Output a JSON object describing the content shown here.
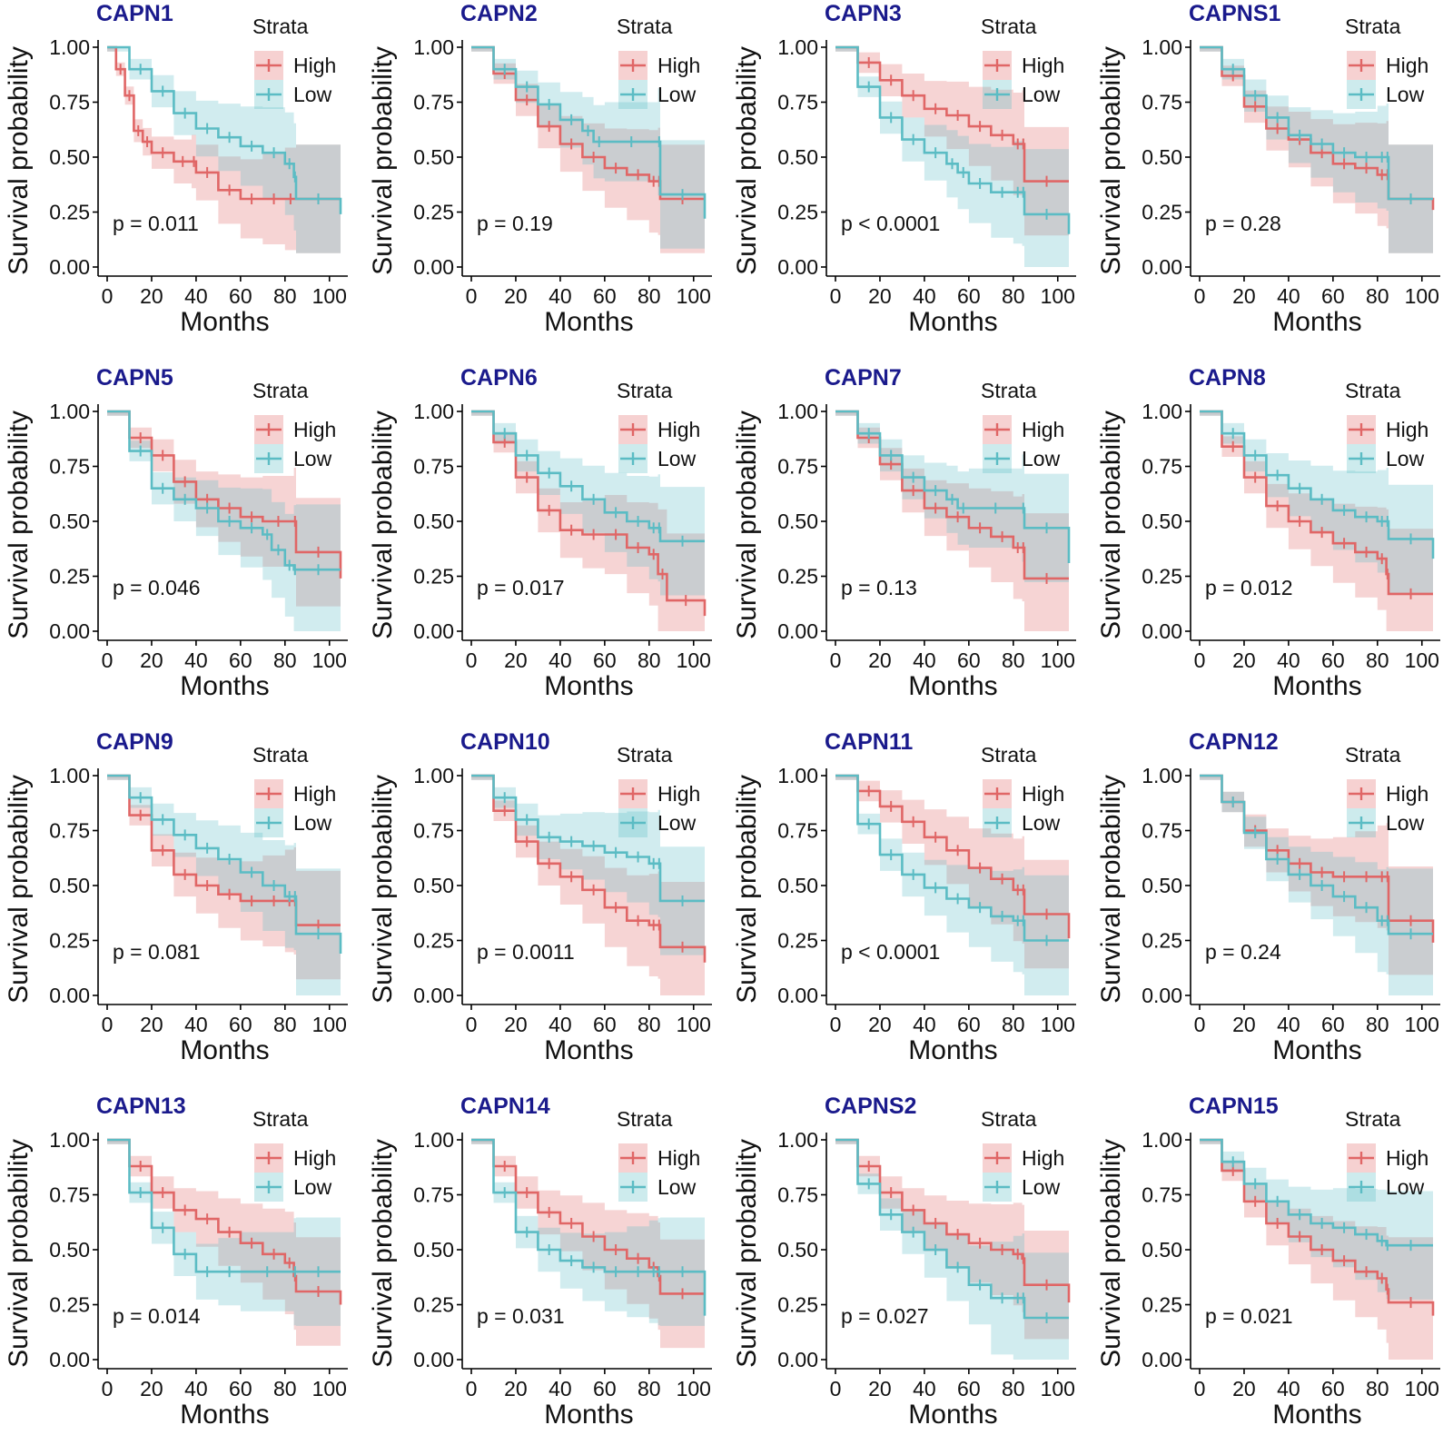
{
  "colors": {
    "high": "#e06666",
    "low": "#5bbcc4",
    "title": "#1a1a8c"
  },
  "legend": {
    "title": "Strata",
    "high_label": "High",
    "low_label": "Low"
  },
  "axes": {
    "xlabel": "Months",
    "ylabel": "Survival probability",
    "xticks": [
      "0",
      "20",
      "40",
      "60",
      "80",
      "100"
    ],
    "yticks": [
      "0.00",
      "0.25",
      "0.50",
      "0.75",
      "1.00"
    ],
    "xlim": [
      0,
      105
    ],
    "ylim": [
      0,
      1
    ]
  },
  "chart_data": [
    {
      "type": "line",
      "title": "CAPN1",
      "pvalue": "p = 0.011",
      "series": [
        {
          "name": "High",
          "x": [
            0,
            4,
            8,
            12,
            16,
            20,
            30,
            38,
            40,
            50,
            60,
            70,
            80,
            85,
            105
          ],
          "y": [
            1.0,
            0.9,
            0.78,
            0.62,
            0.57,
            0.52,
            0.48,
            0.48,
            0.43,
            0.35,
            0.31,
            0.31,
            0.31,
            0.31,
            0.31
          ]
        },
        {
          "name": "Low",
          "x": [
            0,
            10,
            20,
            30,
            40,
            50,
            60,
            70,
            80,
            84,
            85,
            105
          ],
          "y": [
            1.0,
            0.9,
            0.8,
            0.7,
            0.63,
            0.59,
            0.55,
            0.52,
            0.47,
            0.41,
            0.31,
            0.24
          ]
        }
      ]
    },
    {
      "type": "line",
      "title": "CAPN2",
      "pvalue": "p = 0.19",
      "series": [
        {
          "name": "High",
          "x": [
            0,
            10,
            20,
            30,
            40,
            50,
            60,
            70,
            80,
            84,
            85,
            105
          ],
          "y": [
            1.0,
            0.88,
            0.76,
            0.64,
            0.56,
            0.5,
            0.45,
            0.42,
            0.39,
            0.39,
            0.31,
            0.31
          ]
        },
        {
          "name": "Low",
          "x": [
            0,
            10,
            20,
            30,
            40,
            50,
            55,
            60,
            84,
            85,
            105
          ],
          "y": [
            1.0,
            0.9,
            0.82,
            0.74,
            0.67,
            0.62,
            0.57,
            0.57,
            0.57,
            0.33,
            0.22
          ]
        }
      ]
    },
    {
      "type": "line",
      "title": "CAPN3",
      "pvalue": "p < 0.0001",
      "series": [
        {
          "name": "High",
          "x": [
            0,
            10,
            20,
            30,
            40,
            50,
            60,
            70,
            80,
            84,
            85,
            105
          ],
          "y": [
            1.0,
            0.93,
            0.85,
            0.78,
            0.72,
            0.69,
            0.64,
            0.6,
            0.56,
            0.56,
            0.39,
            0.39
          ]
        },
        {
          "name": "Low",
          "x": [
            0,
            10,
            20,
            30,
            40,
            50,
            55,
            60,
            70,
            80,
            84,
            85,
            105
          ],
          "y": [
            1.0,
            0.82,
            0.68,
            0.58,
            0.52,
            0.47,
            0.43,
            0.38,
            0.34,
            0.34,
            0.34,
            0.24,
            0.15
          ]
        }
      ]
    },
    {
      "type": "line",
      "title": "CAPNS1",
      "pvalue": "p = 0.28",
      "series": [
        {
          "name": "High",
          "x": [
            0,
            10,
            20,
            30,
            40,
            50,
            60,
            70,
            80,
            84,
            85,
            105
          ],
          "y": [
            1.0,
            0.87,
            0.73,
            0.63,
            0.58,
            0.52,
            0.47,
            0.45,
            0.42,
            0.42,
            0.31,
            0.26
          ]
        },
        {
          "name": "Low",
          "x": [
            0,
            10,
            20,
            30,
            40,
            50,
            60,
            70,
            80,
            84,
            85,
            105
          ],
          "y": [
            1.0,
            0.9,
            0.78,
            0.68,
            0.6,
            0.56,
            0.52,
            0.5,
            0.5,
            0.5,
            0.31,
            0.31
          ]
        }
      ]
    },
    {
      "type": "line",
      "title": "CAPN5",
      "pvalue": "p = 0.046",
      "series": [
        {
          "name": "High",
          "x": [
            0,
            10,
            20,
            30,
            40,
            50,
            60,
            70,
            84,
            85,
            105
          ],
          "y": [
            1.0,
            0.88,
            0.8,
            0.68,
            0.6,
            0.56,
            0.52,
            0.5,
            0.5,
            0.36,
            0.24
          ]
        },
        {
          "name": "Low",
          "x": [
            0,
            10,
            20,
            30,
            40,
            50,
            60,
            70,
            74,
            80,
            84,
            85,
            105
          ],
          "y": [
            1.0,
            0.82,
            0.65,
            0.6,
            0.56,
            0.5,
            0.47,
            0.44,
            0.37,
            0.3,
            0.28,
            0.28,
            0.28
          ]
        }
      ]
    },
    {
      "type": "line",
      "title": "CAPN6",
      "pvalue": "p = 0.017",
      "series": [
        {
          "name": "High",
          "x": [
            0,
            10,
            20,
            30,
            40,
            50,
            60,
            70,
            80,
            84,
            88,
            105
          ],
          "y": [
            1.0,
            0.86,
            0.7,
            0.55,
            0.46,
            0.44,
            0.44,
            0.38,
            0.35,
            0.26,
            0.14,
            0.07
          ]
        },
        {
          "name": "Low",
          "x": [
            0,
            10,
            20,
            30,
            40,
            50,
            60,
            70,
            80,
            84,
            85,
            105
          ],
          "y": [
            1.0,
            0.9,
            0.8,
            0.72,
            0.66,
            0.6,
            0.54,
            0.5,
            0.47,
            0.47,
            0.41,
            0.41
          ]
        }
      ]
    },
    {
      "type": "line",
      "title": "CAPN7",
      "pvalue": "p = 0.13",
      "series": [
        {
          "name": "High",
          "x": [
            0,
            10,
            20,
            30,
            40,
            50,
            60,
            70,
            80,
            84,
            85,
            105
          ],
          "y": [
            1.0,
            0.88,
            0.76,
            0.64,
            0.56,
            0.52,
            0.47,
            0.43,
            0.38,
            0.38,
            0.24,
            0.24
          ]
        },
        {
          "name": "Low",
          "x": [
            0,
            10,
            20,
            30,
            40,
            50,
            55,
            60,
            84,
            85,
            105
          ],
          "y": [
            1.0,
            0.9,
            0.8,
            0.7,
            0.64,
            0.6,
            0.56,
            0.56,
            0.56,
            0.47,
            0.31
          ]
        }
      ]
    },
    {
      "type": "line",
      "title": "CAPN8",
      "pvalue": "p = 0.012",
      "series": [
        {
          "name": "High",
          "x": [
            0,
            10,
            20,
            30,
            40,
            50,
            60,
            70,
            80,
            84,
            85,
            105
          ],
          "y": [
            1.0,
            0.84,
            0.7,
            0.57,
            0.5,
            0.45,
            0.4,
            0.36,
            0.33,
            0.26,
            0.17,
            0.17
          ]
        },
        {
          "name": "Low",
          "x": [
            0,
            10,
            20,
            30,
            40,
            50,
            60,
            70,
            80,
            84,
            85,
            105
          ],
          "y": [
            1.0,
            0.9,
            0.8,
            0.71,
            0.65,
            0.6,
            0.55,
            0.52,
            0.5,
            0.5,
            0.42,
            0.33
          ]
        }
      ]
    },
    {
      "type": "line",
      "title": "CAPN9",
      "pvalue": "p = 0.081",
      "series": [
        {
          "name": "High",
          "x": [
            0,
            10,
            20,
            30,
            40,
            50,
            60,
            70,
            80,
            84,
            85,
            105
          ],
          "y": [
            1.0,
            0.82,
            0.66,
            0.55,
            0.5,
            0.46,
            0.43,
            0.43,
            0.43,
            0.43,
            0.32,
            0.32
          ]
        },
        {
          "name": "Low",
          "x": [
            0,
            10,
            20,
            30,
            40,
            50,
            60,
            70,
            80,
            84,
            85,
            105
          ],
          "y": [
            1.0,
            0.9,
            0.8,
            0.73,
            0.67,
            0.62,
            0.56,
            0.5,
            0.45,
            0.45,
            0.28,
            0.19
          ]
        }
      ]
    },
    {
      "type": "line",
      "title": "CAPN10",
      "pvalue": "p = 0.0011",
      "series": [
        {
          "name": "High",
          "x": [
            0,
            10,
            20,
            30,
            40,
            50,
            60,
            70,
            80,
            84,
            85,
            105
          ],
          "y": [
            1.0,
            0.84,
            0.7,
            0.6,
            0.54,
            0.48,
            0.4,
            0.34,
            0.32,
            0.32,
            0.22,
            0.15
          ]
        },
        {
          "name": "Low",
          "x": [
            0,
            10,
            20,
            30,
            40,
            50,
            60,
            70,
            80,
            84,
            85,
            105
          ],
          "y": [
            1.0,
            0.9,
            0.8,
            0.72,
            0.7,
            0.68,
            0.65,
            0.63,
            0.6,
            0.6,
            0.43,
            0.43
          ]
        }
      ]
    },
    {
      "type": "line",
      "title": "CAPN11",
      "pvalue": "p < 0.0001",
      "series": [
        {
          "name": "High",
          "x": [
            0,
            10,
            20,
            30,
            40,
            50,
            60,
            70,
            80,
            84,
            85,
            105
          ],
          "y": [
            1.0,
            0.93,
            0.86,
            0.79,
            0.72,
            0.66,
            0.58,
            0.53,
            0.48,
            0.48,
            0.37,
            0.26
          ]
        },
        {
          "name": "Low",
          "x": [
            0,
            10,
            20,
            30,
            40,
            50,
            60,
            70,
            80,
            84,
            85,
            105
          ],
          "y": [
            1.0,
            0.78,
            0.64,
            0.55,
            0.49,
            0.44,
            0.4,
            0.36,
            0.34,
            0.34,
            0.25,
            0.25
          ]
        }
      ]
    },
    {
      "type": "line",
      "title": "CAPN12",
      "pvalue": "p = 0.24",
      "series": [
        {
          "name": "High",
          "x": [
            0,
            10,
            20,
            30,
            40,
            50,
            60,
            70,
            80,
            84,
            85,
            105
          ],
          "y": [
            1.0,
            0.88,
            0.75,
            0.66,
            0.6,
            0.56,
            0.54,
            0.54,
            0.54,
            0.54,
            0.34,
            0.24
          ]
        },
        {
          "name": "Low",
          "x": [
            0,
            10,
            20,
            30,
            40,
            50,
            60,
            70,
            80,
            84,
            85,
            105
          ],
          "y": [
            1.0,
            0.88,
            0.74,
            0.62,
            0.55,
            0.5,
            0.45,
            0.4,
            0.34,
            0.34,
            0.28,
            0.28
          ]
        }
      ]
    },
    {
      "type": "line",
      "title": "CAPN13",
      "pvalue": "p = 0.014",
      "series": [
        {
          "name": "High",
          "x": [
            0,
            10,
            20,
            30,
            40,
            50,
            60,
            70,
            80,
            84,
            85,
            105
          ],
          "y": [
            1.0,
            0.88,
            0.76,
            0.68,
            0.64,
            0.58,
            0.53,
            0.48,
            0.44,
            0.38,
            0.31,
            0.25
          ]
        },
        {
          "name": "Low",
          "x": [
            0,
            10,
            20,
            30,
            40,
            50,
            60,
            84,
            85,
            105
          ],
          "y": [
            1.0,
            0.76,
            0.6,
            0.48,
            0.4,
            0.4,
            0.4,
            0.4,
            0.4,
            0.4
          ]
        }
      ]
    },
    {
      "type": "line",
      "title": "CAPN14",
      "pvalue": "p = 0.031",
      "series": [
        {
          "name": "High",
          "x": [
            0,
            10,
            20,
            30,
            40,
            50,
            60,
            70,
            80,
            84,
            85,
            105
          ],
          "y": [
            1.0,
            0.88,
            0.76,
            0.67,
            0.62,
            0.56,
            0.5,
            0.46,
            0.42,
            0.38,
            0.3,
            0.3
          ]
        },
        {
          "name": "Low",
          "x": [
            0,
            10,
            20,
            30,
            40,
            50,
            60,
            70,
            80,
            84,
            85,
            105
          ],
          "y": [
            1.0,
            0.76,
            0.58,
            0.5,
            0.45,
            0.42,
            0.4,
            0.4,
            0.4,
            0.4,
            0.4,
            0.2
          ]
        }
      ]
    },
    {
      "type": "line",
      "title": "CAPNS2",
      "pvalue": "p = 0.027",
      "series": [
        {
          "name": "High",
          "x": [
            0,
            10,
            20,
            30,
            40,
            50,
            60,
            70,
            80,
            84,
            85,
            105
          ],
          "y": [
            1.0,
            0.88,
            0.76,
            0.68,
            0.62,
            0.57,
            0.53,
            0.5,
            0.48,
            0.46,
            0.34,
            0.26
          ]
        },
        {
          "name": "Low",
          "x": [
            0,
            10,
            20,
            30,
            40,
            50,
            60,
            70,
            80,
            84,
            85,
            105
          ],
          "y": [
            1.0,
            0.8,
            0.66,
            0.58,
            0.5,
            0.42,
            0.34,
            0.28,
            0.28,
            0.28,
            0.19,
            0.19
          ]
        }
      ]
    },
    {
      "type": "line",
      "title": "CAPN15",
      "pvalue": "p = 0.021",
      "series": [
        {
          "name": "High",
          "x": [
            0,
            10,
            20,
            30,
            40,
            50,
            60,
            70,
            80,
            84,
            85,
            105
          ],
          "y": [
            1.0,
            0.86,
            0.72,
            0.62,
            0.56,
            0.5,
            0.45,
            0.4,
            0.37,
            0.32,
            0.26,
            0.2
          ]
        },
        {
          "name": "Low",
          "x": [
            0,
            10,
            20,
            30,
            40,
            50,
            60,
            70,
            80,
            84,
            85,
            105
          ],
          "y": [
            1.0,
            0.9,
            0.8,
            0.72,
            0.66,
            0.62,
            0.6,
            0.57,
            0.54,
            0.52,
            0.52,
            0.52
          ]
        }
      ]
    }
  ]
}
